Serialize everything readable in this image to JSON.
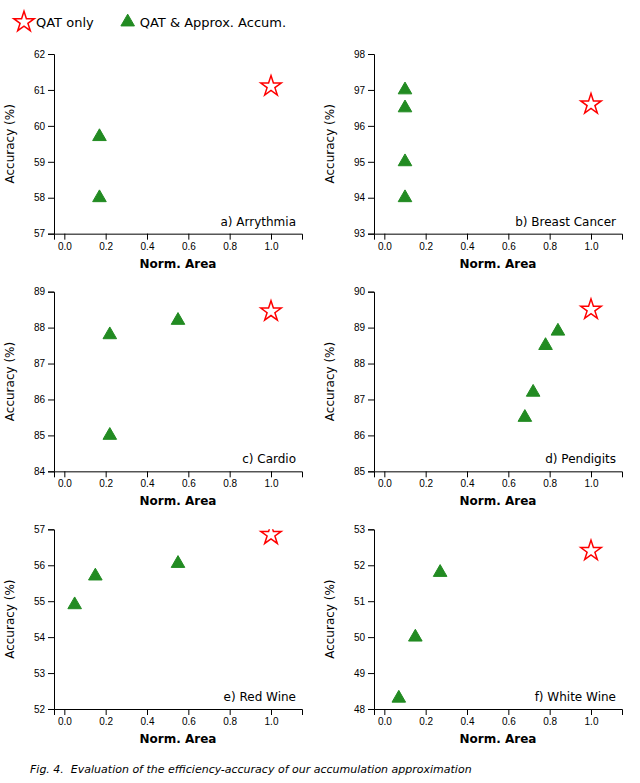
{
  "chart_data": [
    {
      "type": "scatter",
      "title": "a) Arrythmia",
      "x_label": "Norm. Area",
      "y_label": "Accuracy (%)",
      "legend": "upper left",
      "xlim": [
        -0.05,
        1.15
      ],
      "xticks": [
        {
          "value": 0.0,
          "label": "0.0"
        },
        0.2,
        0.4,
        0.6,
        0.8,
        {
          "value": 1.0,
          "label": "1.0"
        }
      ],
      "ylim": [
        57,
        62
      ],
      "yticks": [
        57,
        58,
        59,
        60,
        61,
        62
      ],
      "series": [
        {
          "name": "QAT only",
          "color": "#FF0000",
          "marker": "star-open",
          "x": [
            1.0
          ],
          "values": [
            61.1
          ]
        },
        {
          "name": "QAT & Approx. Accum.",
          "color": "#228B22",
          "marker": "triangle-up",
          "x": [
            0.17,
            0.17
          ],
          "values": [
            59.7,
            58.0
          ]
        }
      ]
    },
    {
      "type": "scatter",
      "title": "b) Breast Cancer",
      "x_label": "Norm. Area",
      "y_label": "Accuracy (%)",
      "xlim": [
        -0.05,
        1.15
      ],
      "xticks": [
        {
          "value": 0.0,
          "label": "0.0"
        },
        0.2,
        0.4,
        0.6,
        0.8,
        {
          "value": 1.0,
          "label": "1.0"
        }
      ],
      "ylim": [
        93,
        98
      ],
      "yticks": [
        93,
        94,
        95,
        96,
        97,
        98
      ],
      "series": [
        {
          "name": "QAT only",
          "color": "#FF0000",
          "marker": "star-open",
          "x": [
            1.0
          ],
          "values": [
            96.6
          ]
        },
        {
          "name": "QAT & Approx. Accum.",
          "color": "#228B22",
          "marker": "triangle-up",
          "x": [
            0.1,
            0.1,
            0.1,
            0.1
          ],
          "values": [
            97.0,
            96.5,
            95.0,
            94.0
          ]
        }
      ]
    },
    {
      "type": "scatter",
      "title": "c) Cardio",
      "x_label": "Norm. Area",
      "y_label": "Accuracy (%)",
      "xlim": [
        -0.05,
        1.15
      ],
      "xticks": [
        {
          "value": 0.0,
          "label": "0.0"
        },
        0.2,
        0.4,
        0.6,
        0.8,
        {
          "value": 1.0,
          "label": "1.0"
        }
      ],
      "ylim": [
        84,
        89
      ],
      "yticks": [
        84,
        85,
        86,
        87,
        88,
        89
      ],
      "series": [
        {
          "name": "QAT only",
          "color": "#FF0000",
          "marker": "star-open",
          "x": [
            1.0
          ],
          "values": [
            88.45
          ]
        },
        {
          "name": "QAT & Approx. Accum.",
          "color": "#228B22",
          "marker": "triangle-up",
          "x": [
            0.22,
            0.22,
            0.55
          ],
          "values": [
            87.8,
            85.0,
            88.2
          ]
        }
      ]
    },
    {
      "type": "scatter",
      "title": "d) Pendigits",
      "x_label": "Norm. Area",
      "y_label": "Accuracy (%)",
      "xlim": [
        -0.05,
        1.15
      ],
      "xticks": [
        {
          "value": 0.0,
          "label": "0.0"
        },
        0.2,
        0.4,
        0.6,
        0.8,
        {
          "value": 1.0,
          "label": "1.0"
        }
      ],
      "ylim": [
        85,
        90
      ],
      "yticks": [
        85,
        86,
        87,
        88,
        89,
        90
      ],
      "series": [
        {
          "name": "QAT only",
          "color": "#FF0000",
          "marker": "star-open",
          "x": [
            1.0
          ],
          "values": [
            89.5
          ]
        },
        {
          "name": "QAT & Approx. Accum.",
          "color": "#228B22",
          "marker": "triangle-up",
          "x": [
            0.68,
            0.72,
            0.78,
            0.84
          ],
          "values": [
            86.5,
            87.2,
            88.5,
            88.9
          ]
        }
      ]
    },
    {
      "type": "scatter",
      "title": "e) Red Wine",
      "x_label": "Norm. Area",
      "y_label": "Accuracy (%)",
      "xlim": [
        -0.05,
        1.15
      ],
      "xticks": [
        {
          "value": 0.0,
          "label": "0.0"
        },
        0.2,
        0.4,
        0.6,
        0.8,
        {
          "value": 1.0,
          "label": "1.0"
        }
      ],
      "ylim": [
        52,
        57
      ],
      "yticks": [
        52,
        53,
        54,
        55,
        56,
        57
      ],
      "series": [
        {
          "name": "QAT only",
          "color": "#FF0000",
          "marker": "star-open",
          "x": [
            1.0
          ],
          "values": [
            56.85
          ]
        },
        {
          "name": "QAT & Approx. Accum.",
          "color": "#228B22",
          "marker": "triangle-up",
          "x": [
            0.05,
            0.15,
            0.55
          ],
          "values": [
            54.9,
            55.7,
            56.05
          ]
        }
      ]
    },
    {
      "type": "scatter",
      "title": "f) White Wine",
      "x_label": "Norm. Area",
      "y_label": "Accuracy (%)",
      "xlim": [
        -0.05,
        1.15
      ],
      "xticks": [
        {
          "value": 0.0,
          "label": "0.0"
        },
        0.2,
        0.4,
        0.6,
        0.8,
        {
          "value": 1.0,
          "label": "1.0"
        }
      ],
      "ylim": [
        48,
        53
      ],
      "yticks": [
        48,
        49,
        50,
        51,
        52,
        53
      ],
      "annotations": [
        "Fig. 4.  Evaluation of the efficiency-accuracy of our accumulation approximation"
      ],
      "series": [
        {
          "name": "QAT only",
          "color": "#FF0000",
          "marker": "star-open",
          "x": [
            1.0
          ],
          "values": [
            52.4
          ]
        },
        {
          "name": "QAT & Approx. Accum.",
          "color": "#228B22",
          "marker": "triangle-up",
          "x": [
            0.07,
            0.15,
            0.27
          ],
          "values": [
            48.3,
            50.0,
            51.8
          ]
        }
      ]
    }
  ]
}
